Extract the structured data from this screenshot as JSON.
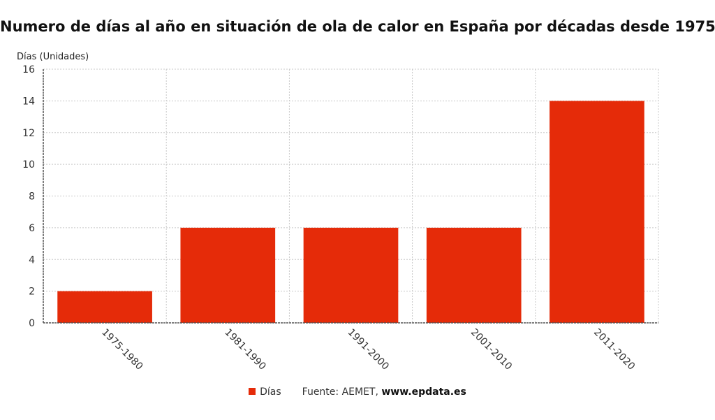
{
  "chart_data": {
    "type": "bar",
    "title": "Numero de días al año en situación de ola de calor en España por décadas desde 1975",
    "ylabel": "Días (Unidades)",
    "xlabel": "",
    "categories": [
      "1975-1980",
      "1981-1990",
      "1991-2000",
      "2001-2010",
      "2011-2020"
    ],
    "series": [
      {
        "name": "Días",
        "values": [
          2,
          6,
          6,
          6,
          14
        ],
        "color": "#e52b09"
      }
    ],
    "ylim": [
      0,
      16
    ],
    "yticks": [
      0,
      2,
      4,
      6,
      8,
      10,
      12,
      14,
      16
    ],
    "grid": true,
    "legend_position": "bottom-center"
  },
  "source": {
    "prefix": "Fuente: AEMET,",
    "site": "www.epdata.es"
  }
}
